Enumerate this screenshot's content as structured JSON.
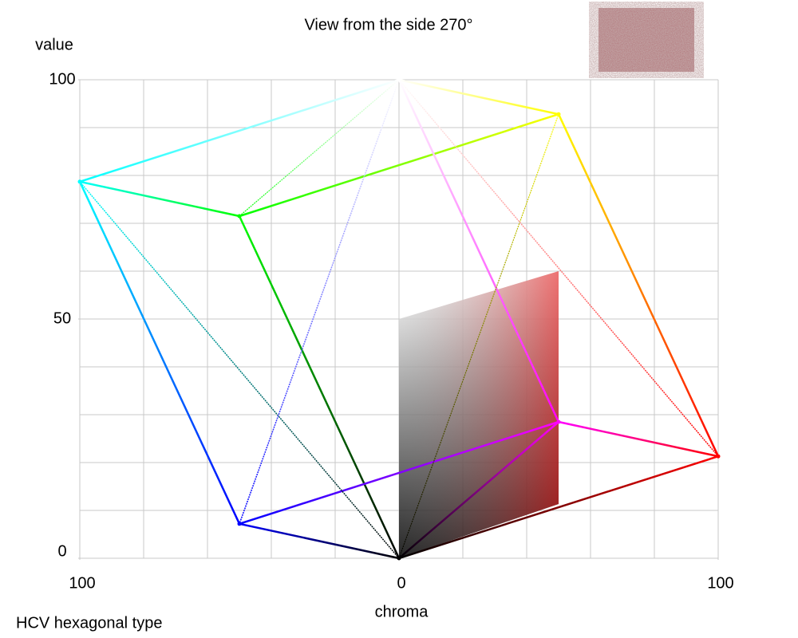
{
  "chart_data": {
    "type": "scatter",
    "title": "View from the side 270°",
    "y_label": "value",
    "x_label": "chroma",
    "caption": "HCV hexagonal type",
    "x": [
      0,
      0,
      100,
      50,
      -50,
      -100,
      -50,
      50
    ],
    "values": [
      0,
      100,
      21.3,
      92.8,
      71.5,
      78.7,
      7.2,
      28.5
    ],
    "colors": [
      "#000000",
      "#ffffff",
      "#ff0000",
      "#ffff00",
      "#00ff00",
      "#00ffff",
      "#0000ff",
      "#ff00ff"
    ],
    "xlim": [
      -100,
      100
    ],
    "ylim": [
      0,
      100
    ],
    "xticks": [
      {
        "value": -100,
        "label": "100"
      },
      0,
      100
    ],
    "yticks": [
      0,
      50,
      100
    ],
    "grid": true
  }
}
